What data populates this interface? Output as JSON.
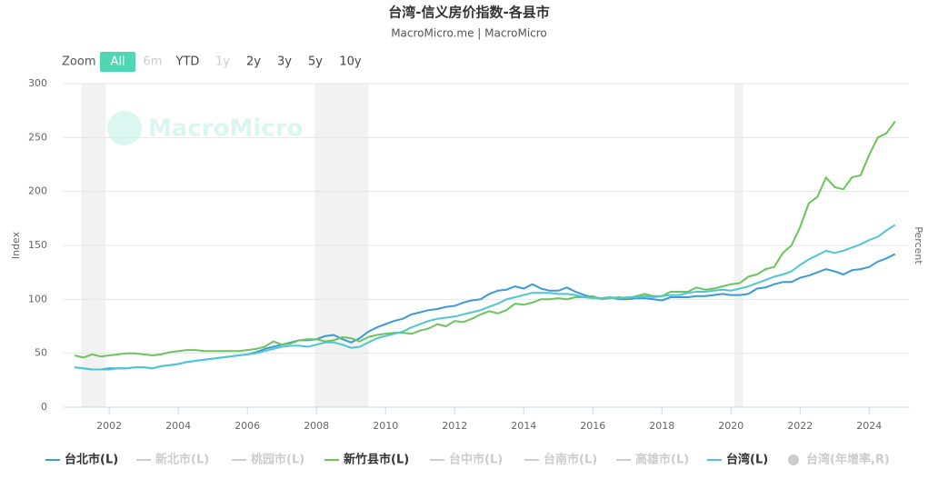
{
  "chart_data": {
    "type": "line",
    "title": "台湾-信义房价指数-各县市",
    "subtitle": "MacroMicro.me | MacroMicro",
    "watermark": "MacroMicro",
    "y_label": "Index",
    "y2_label": "Percent",
    "range_selector": {
      "label": "Zoom",
      "buttons": [
        {
          "text": "All",
          "state": "active"
        },
        {
          "text": "6m",
          "state": "disabled"
        },
        {
          "text": "YTD",
          "state": "enabled"
        },
        {
          "text": "1y",
          "state": "disabled"
        },
        {
          "text": "2y",
          "state": "enabled"
        },
        {
          "text": "3y",
          "state": "enabled"
        },
        {
          "text": "5y",
          "state": "enabled"
        },
        {
          "text": "10y",
          "state": "enabled"
        }
      ]
    },
    "xlim": [
      2000.68,
      2025.15
    ],
    "xticks": [
      2002,
      2004,
      2006,
      2008,
      2010,
      2012,
      2014,
      2016,
      2018,
      2020,
      2022,
      2024
    ],
    "ylim": [
      0,
      300
    ],
    "yticks": [
      0,
      50,
      100,
      150,
      200,
      250,
      300
    ],
    "grid": true,
    "shaded_ranges": [
      [
        2001.2,
        2001.9
      ],
      [
        2007.95,
        2009.5
      ],
      [
        2020.1,
        2020.35
      ]
    ],
    "x": [
      2001,
      2001.25,
      2001.5,
      2001.75,
      2002,
      2002.25,
      2002.5,
      2002.75,
      2003,
      2003.25,
      2003.5,
      2003.75,
      2004,
      2004.25,
      2004.5,
      2004.75,
      2005,
      2005.25,
      2005.5,
      2005.75,
      2006,
      2006.25,
      2006.5,
      2006.75,
      2007,
      2007.25,
      2007.5,
      2007.75,
      2008,
      2008.25,
      2008.5,
      2008.75,
      2009,
      2009.25,
      2009.5,
      2009.75,
      2010,
      2010.25,
      2010.5,
      2010.75,
      2011,
      2011.25,
      2011.5,
      2011.75,
      2012,
      2012.25,
      2012.5,
      2012.75,
      2013,
      2013.25,
      2013.5,
      2013.75,
      2014,
      2014.25,
      2014.5,
      2014.75,
      2015,
      2015.25,
      2015.5,
      2015.75,
      2016,
      2016.25,
      2016.5,
      2016.75,
      2017,
      2017.25,
      2017.5,
      2017.75,
      2018,
      2018.25,
      2018.5,
      2018.75,
      2019,
      2019.25,
      2019.5,
      2019.75,
      2020,
      2020.25,
      2020.5,
      2020.75,
      2021,
      2021.25,
      2021.5,
      2021.75,
      2022,
      2022.25,
      2022.5,
      2022.75,
      2023,
      2023.25,
      2023.5,
      2023.75,
      2024,
      2024.25,
      2024.5,
      2024.75
    ],
    "legend_position": "bottom",
    "series": [
      {
        "name": "台北市(L)",
        "color": "#3d9ad8",
        "visible": true,
        "values": [
          37,
          36,
          35,
          35,
          36,
          36,
          36,
          37,
          37,
          36,
          38,
          39,
          40,
          42,
          43,
          44,
          45,
          46,
          47,
          48,
          49,
          51,
          54,
          56,
          58,
          60,
          62,
          62,
          63,
          66,
          67,
          63,
          60,
          64,
          70,
          74,
          77,
          80,
          82,
          86,
          88,
          90,
          91,
          93,
          94,
          97,
          99,
          100,
          105,
          108,
          109,
          112,
          110,
          114,
          110,
          108,
          108,
          111,
          107,
          104,
          102,
          101,
          102,
          100,
          100,
          101,
          101,
          100,
          99,
          102,
          102,
          102,
          103,
          103,
          104,
          105,
          104,
          104,
          105,
          110,
          111,
          114,
          116,
          116,
          120,
          122,
          125,
          128,
          126,
          123,
          127,
          128,
          130,
          135,
          138,
          142
        ]
      },
      {
        "name": "新北市(L)",
        "color": "#cccccc",
        "visible": false
      },
      {
        "name": "桃园市(L)",
        "color": "#cccccc",
        "visible": false
      },
      {
        "name": "新竹县市(L)",
        "color": "#6cc45c",
        "visible": true,
        "values": [
          48,
          46,
          49,
          47,
          48,
          49,
          50,
          50,
          49,
          48,
          49,
          51,
          52,
          53,
          53,
          52,
          52,
          52,
          52,
          52,
          53,
          54,
          56,
          61,
          58,
          59,
          62,
          63,
          63,
          61,
          62,
          65,
          64,
          61,
          65,
          67,
          68,
          69,
          69,
          68,
          71,
          73,
          77,
          75,
          80,
          79,
          82,
          86,
          89,
          87,
          90,
          96,
          95,
          97,
          100,
          100,
          101,
          100,
          102,
          102,
          103,
          100,
          101,
          102,
          101,
          103,
          105,
          103,
          103,
          107,
          107,
          107,
          111,
          109,
          110,
          112,
          114,
          115,
          121,
          123,
          128,
          130,
          143,
          150,
          167,
          189,
          195,
          213,
          204,
          202,
          213,
          215,
          234,
          250,
          254,
          265
        ]
      },
      {
        "name": "台中市(L)",
        "color": "#cccccc",
        "visible": false
      },
      {
        "name": "台南市(L)",
        "color": "#cccccc",
        "visible": false
      },
      {
        "name": "高雄市(L)",
        "color": "#cccccc",
        "visible": false
      },
      {
        "name": "台湾(L)",
        "color": "#4fc6d2",
        "visible": true,
        "values": [
          37,
          36,
          35,
          35,
          35,
          36,
          36,
          37,
          37,
          36,
          38,
          39,
          40,
          42,
          43,
          44,
          45,
          46,
          47,
          48,
          49,
          50,
          52,
          54,
          56,
          57,
          57,
          56,
          58,
          60,
          60,
          58,
          55,
          56,
          60,
          64,
          66,
          68,
          70,
          74,
          77,
          80,
          82,
          83,
          84,
          86,
          88,
          90,
          93,
          96,
          100,
          102,
          104,
          106,
          106,
          106,
          105,
          105,
          104,
          102,
          101,
          101,
          102,
          101,
          102,
          102,
          103,
          102,
          103,
          104,
          104,
          106,
          107,
          107,
          108,
          109,
          108,
          110,
          112,
          115,
          118,
          121,
          123,
          126,
          132,
          137,
          141,
          145,
          143,
          145,
          148,
          151,
          155,
          158,
          164,
          169
        ]
      },
      {
        "name": "台湾(年增率,R)",
        "color": "#cccccc",
        "visible": false,
        "axis": "y2"
      }
    ]
  }
}
